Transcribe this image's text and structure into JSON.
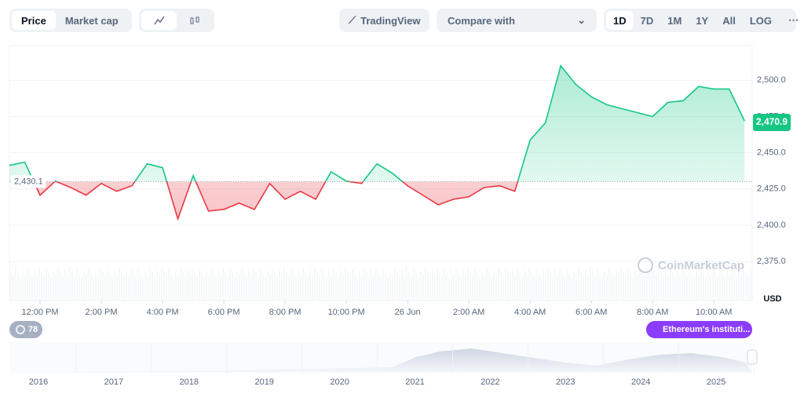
{
  "toolbar": {
    "price_tabs": [
      "Price",
      "Market cap"
    ],
    "tradingview": "TradingView",
    "compare": "Compare with",
    "ranges": [
      "1D",
      "7D",
      "1M",
      "1Y",
      "All",
      "LOG"
    ]
  },
  "chart_data": {
    "type": "line",
    "x": [
      0,
      1,
      2,
      3,
      4,
      5,
      6,
      7,
      8,
      9,
      10,
      11,
      12,
      13,
      14,
      15,
      16,
      17,
      18,
      19,
      20,
      21,
      22,
      23,
      24,
      25,
      26,
      27,
      28,
      29,
      30,
      31,
      32,
      33,
      34,
      35,
      36,
      37,
      38,
      39,
      40,
      41,
      42,
      43,
      44,
      45,
      46,
      47,
      48
    ],
    "values": [
      2441.3,
      2443.5,
      2420.7,
      2430.4,
      2426,
      2420.7,
      2428.8,
      2423.4,
      2427.2,
      2442.4,
      2439.7,
      2404.3,
      2434.2,
      2409.8,
      2410.9,
      2415.2,
      2410.9,
      2428.8,
      2417.9,
      2423.4,
      2417.9,
      2436.9,
      2430.4,
      2428.8,
      2442.4,
      2435.9,
      2427.2,
      2420.7,
      2414.1,
      2417.9,
      2419.6,
      2426,
      2427.2,
      2423.4,
      2458.7,
      2470.7,
      2510,
      2497,
      2488.6,
      2483.2,
      2480.4,
      2477.7,
      2475,
      2484.8,
      2485.9,
      2495.7,
      2494,
      2494,
      2472
    ],
    "up_color": "#16c784",
    "down_color": "#ea3943",
    "baseline": {
      "value": 2430.1,
      "label": "2,430.1"
    },
    "current_price": {
      "value": 2470.9,
      "label": "2,470.9"
    },
    "xlim": [
      0,
      48.5
    ],
    "xticks": [
      {
        "value": 2,
        "label": "12:00 PM"
      },
      {
        "value": 6,
        "label": "2:00 PM"
      },
      {
        "value": 10,
        "label": "4:00 PM"
      },
      {
        "value": 14,
        "label": "6:00 PM"
      },
      {
        "value": 18,
        "label": "8:00 PM"
      },
      {
        "value": 22,
        "label": "10:00 PM"
      },
      {
        "value": 26,
        "label": "26 Jun"
      },
      {
        "value": 30,
        "label": "2:00 AM"
      },
      {
        "value": 34,
        "label": "4:00 AM"
      },
      {
        "value": 38,
        "label": "6:00 AM"
      },
      {
        "value": 42,
        "label": "8:00 AM"
      },
      {
        "value": 46,
        "label": "10:00 AM"
      }
    ],
    "ylim": [
      2348,
      2524
    ],
    "yticks": [
      {
        "value": 2375,
        "label": "2,375.0"
      },
      {
        "value": 2400,
        "label": "2,400.0"
      },
      {
        "value": 2425,
        "label": "2,425.0"
      },
      {
        "value": 2450,
        "label": "2,450.0"
      },
      {
        "value": 2475,
        "label": "2,475.0"
      },
      {
        "value": 2500,
        "label": "2,500.0"
      }
    ],
    "grid": true,
    "currency": "USD",
    "watermark": "CoinMarketCap"
  },
  "badges": {
    "events": "78",
    "news": "Ethereum's instituti..."
  },
  "navigator": {
    "years": [
      "2016",
      "2017",
      "2018",
      "2019",
      "2020",
      "2021",
      "2022",
      "2023",
      "2024",
      "2025"
    ]
  }
}
